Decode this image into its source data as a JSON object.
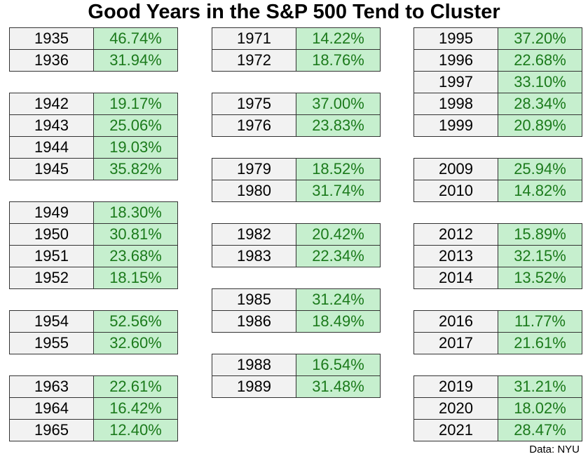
{
  "title": "Good Years in the S&P 500 Tend to Cluster",
  "columns": [
    {
      "groups": [
        {
          "rows": [
            [
              "1935",
              "46.74%"
            ],
            [
              "1936",
              "31.94%"
            ]
          ]
        },
        {
          "rows": [
            [
              "1942",
              "19.17%"
            ],
            [
              "1943",
              "25.06%"
            ],
            [
              "1944",
              "19.03%"
            ],
            [
              "1945",
              "35.82%"
            ]
          ]
        },
        {
          "rows": [
            [
              "1949",
              "18.30%"
            ],
            [
              "1950",
              "30.81%"
            ],
            [
              "1951",
              "23.68%"
            ],
            [
              "1952",
              "18.15%"
            ]
          ]
        },
        {
          "rows": [
            [
              "1954",
              "52.56%"
            ],
            [
              "1955",
              "32.60%"
            ]
          ]
        },
        {
          "rows": [
            [
              "1963",
              "22.61%"
            ],
            [
              "1964",
              "16.42%"
            ],
            [
              "1965",
              "12.40%"
            ]
          ]
        }
      ]
    },
    {
      "groups": [
        {
          "rows": [
            [
              "1971",
              "14.22%"
            ],
            [
              "1972",
              "18.76%"
            ]
          ]
        },
        {
          "rows": [
            [
              "1975",
              "37.00%"
            ],
            [
              "1976",
              "23.83%"
            ]
          ]
        },
        {
          "rows": [
            [
              "1979",
              "18.52%"
            ],
            [
              "1980",
              "31.74%"
            ]
          ]
        },
        {
          "rows": [
            [
              "1982",
              "20.42%"
            ],
            [
              "1983",
              "22.34%"
            ]
          ]
        },
        {
          "rows": [
            [
              "1985",
              "31.24%"
            ],
            [
              "1986",
              "18.49%"
            ]
          ]
        },
        {
          "rows": [
            [
              "1988",
              "16.54%"
            ],
            [
              "1989",
              "31.48%"
            ]
          ]
        }
      ]
    },
    {
      "groups": [
        {
          "rows": [
            [
              "1995",
              "37.20%"
            ],
            [
              "1996",
              "22.68%"
            ],
            [
              "1997",
              "33.10%"
            ],
            [
              "1998",
              "28.34%"
            ],
            [
              "1999",
              "20.89%"
            ]
          ]
        },
        {
          "rows": [
            [
              "2009",
              "25.94%"
            ],
            [
              "2010",
              "14.82%"
            ]
          ]
        },
        {
          "rows": [
            [
              "2012",
              "15.89%"
            ],
            [
              "2013",
              "32.15%"
            ],
            [
              "2014",
              "13.52%"
            ]
          ]
        },
        {
          "rows": [
            [
              "2016",
              "11.77%"
            ],
            [
              "2017",
              "21.61%"
            ]
          ]
        },
        {
          "rows": [
            [
              "2019",
              "31.21%"
            ],
            [
              "2020",
              "18.02%"
            ],
            [
              "2021",
              "28.47%"
            ]
          ]
        }
      ]
    }
  ],
  "source": "Data: NYU"
}
